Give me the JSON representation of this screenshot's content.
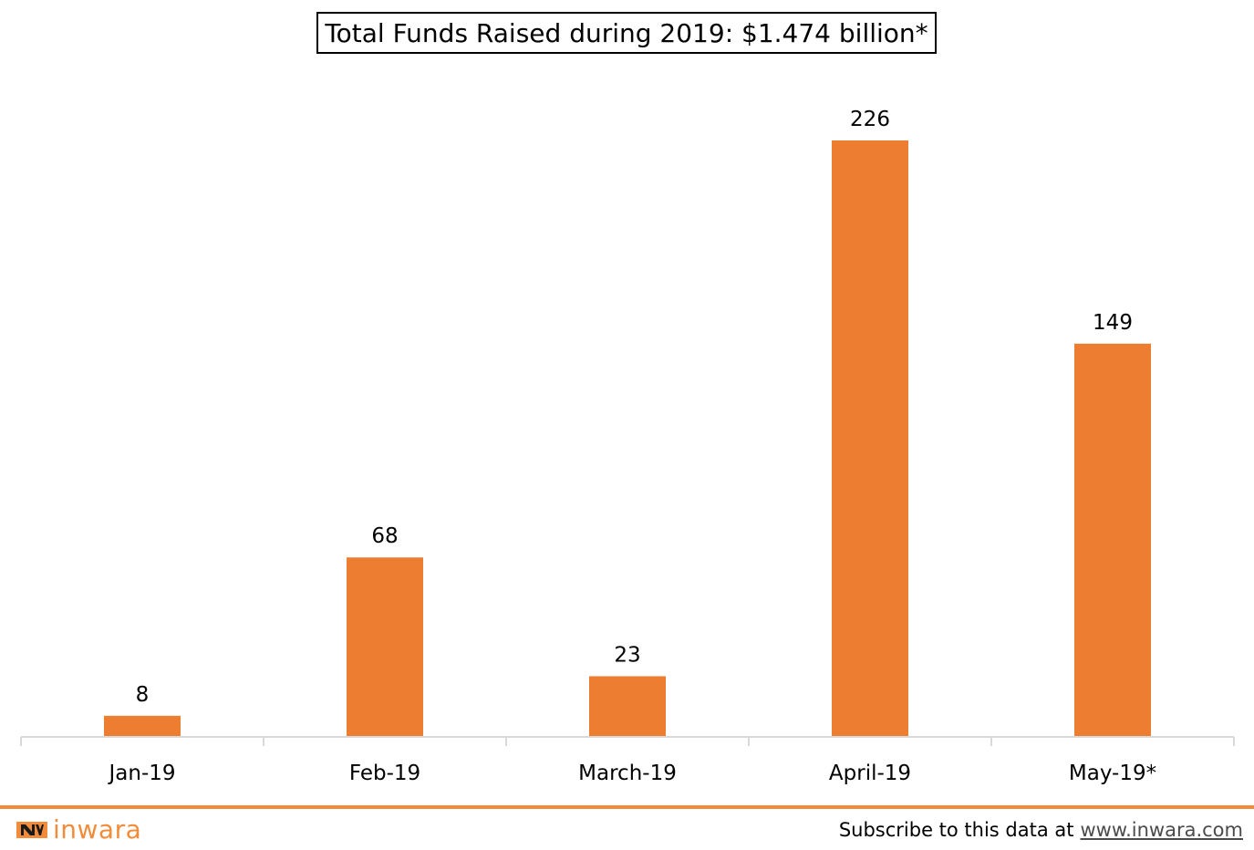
{
  "chart_data": {
    "type": "bar",
    "title": "Total Funds Raised during 2019: $1.474 billion*",
    "categories": [
      "Jan-19",
      "Feb-19",
      "March-19",
      "April-19",
      "May-19*"
    ],
    "values": [
      8,
      68,
      23,
      226,
      149
    ],
    "data_labels": [
      "8",
      "68",
      "23",
      "226",
      "149"
    ],
    "xlabel": "",
    "ylabel": "",
    "ylim": [
      0,
      226
    ],
    "grid": false,
    "legend": "none",
    "bar_color": "#ed7d31",
    "axis_color": "#d9d9d9"
  },
  "footer": {
    "brand_name": "inwara",
    "brand_color": "#f28c3a",
    "rule_color": "#f28c3a",
    "subscribe_text": "Subscribe to this data at",
    "subscribe_link": "www.inwara.com"
  }
}
